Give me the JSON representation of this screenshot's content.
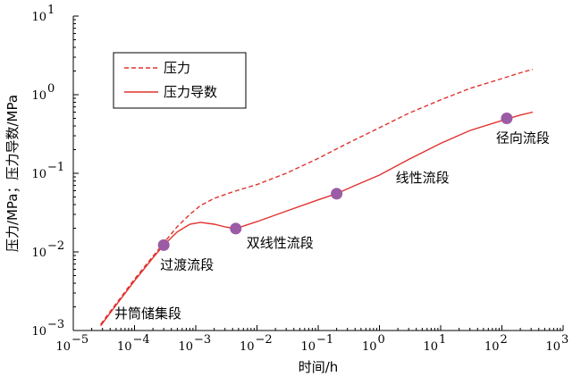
{
  "chart_data": {
    "type": "line",
    "xscale": "log",
    "yscale": "log",
    "xlim": [
      1e-05,
      1000
    ],
    "ylim": [
      0.001,
      10
    ],
    "xlabel": "时间/h",
    "ylabel": "压力/MPa；压力导数/MPa",
    "x_ticks": [
      {
        "value": 1e-05,
        "base": "10",
        "exp": "−5"
      },
      {
        "value": 0.0001,
        "base": "10",
        "exp": "−4"
      },
      {
        "value": 0.001,
        "base": "10",
        "exp": "−3"
      },
      {
        "value": 0.01,
        "base": "10",
        "exp": "−2"
      },
      {
        "value": 0.1,
        "base": "10",
        "exp": "−1"
      },
      {
        "value": 1,
        "base": "10",
        "exp": "0"
      },
      {
        "value": 10,
        "base": "10",
        "exp": "1"
      },
      {
        "value": 100,
        "base": "10",
        "exp": "2"
      },
      {
        "value": 1000,
        "base": "10",
        "exp": "3"
      }
    ],
    "y_ticks": [
      {
        "value": 0.001,
        "base": "10",
        "exp": "−3"
      },
      {
        "value": 0.01,
        "base": "10",
        "exp": "−2"
      },
      {
        "value": 0.1,
        "base": "10",
        "exp": "−1"
      },
      {
        "value": 1,
        "base": "10",
        "exp": "0"
      },
      {
        "value": 10,
        "base": "10",
        "exp": "1"
      }
    ],
    "grid": false,
    "legend_position": "top-left",
    "series": [
      {
        "name": "压力",
        "style": "dashed",
        "color": "#e0322d",
        "x": [
          2.8e-05,
          5e-05,
          0.0001,
          0.0002,
          0.0003,
          0.0005,
          0.0008,
          0.0012,
          0.002,
          0.004,
          0.01,
          0.03,
          0.1,
          0.3,
          1,
          3,
          10,
          30,
          100,
          200,
          320
        ],
        "y": [
          0.0012,
          0.0022,
          0.0045,
          0.0088,
          0.013,
          0.021,
          0.03,
          0.039,
          0.048,
          0.058,
          0.072,
          0.1,
          0.155,
          0.24,
          0.38,
          0.58,
          0.86,
          1.2,
          1.6,
          1.9,
          2.1
        ]
      },
      {
        "name": "压力导数",
        "style": "solid",
        "color": "#e0322d",
        "x": [
          2.8e-05,
          5e-05,
          0.0001,
          0.0002,
          0.0003,
          0.0005,
          0.0008,
          0.0012,
          0.002,
          0.003,
          0.0045,
          0.01,
          0.03,
          0.1,
          0.2,
          0.4,
          1,
          3,
          10,
          30,
          100,
          200,
          320
        ],
        "y": [
          0.00115,
          0.0021,
          0.0043,
          0.0084,
          0.0122,
          0.018,
          0.0225,
          0.0238,
          0.0225,
          0.0208,
          0.0198,
          0.0243,
          0.033,
          0.046,
          0.055,
          0.07,
          0.095,
          0.15,
          0.24,
          0.35,
          0.47,
          0.55,
          0.6
        ]
      }
    ],
    "markers": [
      {
        "x": 0.0003,
        "y": 0.0122,
        "label": "过渡流段",
        "color": "#9b5ba5"
      },
      {
        "x": 0.0045,
        "y": 0.0198,
        "label": "双线性流段",
        "color": "#9b5ba5"
      },
      {
        "x": 0.2,
        "y": 0.055,
        "label": "线性流段",
        "color": "#9b5ba5"
      },
      {
        "x": 120,
        "y": 0.5,
        "label": "径向流段",
        "color": "#9b5ba5"
      }
    ],
    "annotations": [
      {
        "text": "井筒储集段"
      }
    ]
  }
}
